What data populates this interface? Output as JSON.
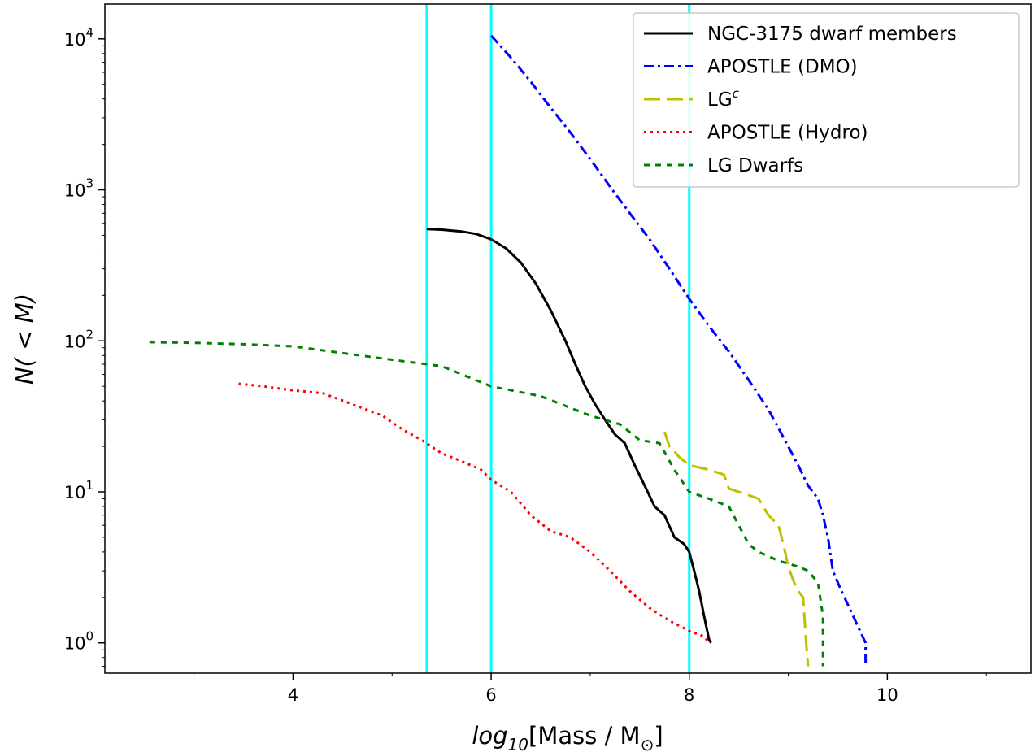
{
  "chart_data": {
    "type": "line",
    "xlabel": {
      "prefix": "log",
      "sub": "10",
      "rest": "[Mass / M",
      "sun": "⊙",
      "close": "]"
    },
    "ylabel": "N( < M)",
    "xlim": [
      2.1,
      11.45
    ],
    "ylim": [
      0.63,
      17000
    ],
    "yscale": "log",
    "grid": false,
    "legend_position": "top-right",
    "x_ticks": [
      4,
      6,
      8,
      10
    ],
    "x_minor_ticks": [
      3,
      5,
      7,
      9,
      11
    ],
    "y_ticks": [
      {
        "value": 1,
        "base": "10",
        "exp": "0"
      },
      {
        "value": 10,
        "base": "10",
        "exp": "1"
      },
      {
        "value": 100,
        "base": "10",
        "exp": "2"
      },
      {
        "value": 1000,
        "base": "10",
        "exp": "3"
      },
      {
        "value": 10000,
        "base": "10",
        "exp": "4"
      }
    ],
    "vlines": {
      "color": "#00ffff",
      "x": [
        5.35,
        6.0,
        8.0
      ]
    },
    "series": [
      {
        "name": "NGC-3175 dwarf members",
        "legend_sup": "",
        "color": "#000000",
        "dash": "",
        "x": [
          5.35,
          5.5,
          5.7,
          5.85,
          6.0,
          6.15,
          6.3,
          6.45,
          6.6,
          6.75,
          6.85,
          6.95,
          7.05,
          7.15,
          7.25,
          7.35,
          7.45,
          7.55,
          7.65,
          7.75,
          7.85,
          7.95,
          8.0,
          8.05,
          8.1,
          8.15,
          8.2,
          8.22
        ],
        "y": [
          550,
          545,
          530,
          510,
          470,
          410,
          330,
          240,
          160,
          100,
          70,
          50,
          38,
          30,
          24,
          21,
          15,
          11,
          8,
          7,
          5,
          4.5,
          4,
          3,
          2.2,
          1.5,
          1.05,
          1
        ]
      },
      {
        "name": "APOSTLE (DMO)",
        "legend_sup": "",
        "color": "#0000ff",
        "dash": "12 5 3 5",
        "x": [
          6.0,
          6.2,
          6.4,
          6.6,
          6.8,
          7.0,
          7.2,
          7.4,
          7.6,
          7.8,
          8.0,
          8.2,
          8.4,
          8.6,
          8.8,
          9.0,
          9.1,
          9.2,
          9.3,
          9.35,
          9.4,
          9.45,
          9.5,
          9.6,
          9.7,
          9.78,
          9.78
        ],
        "y": [
          10500,
          7500,
          5200,
          3500,
          2400,
          1600,
          1050,
          700,
          470,
          300,
          190,
          125,
          85,
          55,
          35,
          20,
          15,
          11,
          9,
          7,
          5,
          3,
          2.5,
          1.8,
          1.3,
          1,
          0.7
        ]
      },
      {
        "name": "LG",
        "legend_sup": "c",
        "color": "#bfbf00",
        "dash": "20 8",
        "x": [
          7.75,
          7.8,
          7.85,
          7.9,
          8.0,
          8.1,
          8.2,
          8.35,
          8.4,
          8.5,
          8.6,
          8.7,
          8.8,
          8.9,
          8.95,
          9.0,
          9.05,
          9.1,
          9.15,
          9.18,
          9.2
        ],
        "y": [
          25,
          20,
          18.5,
          17,
          15,
          14.5,
          14,
          13,
          10.5,
          10,
          9.5,
          9,
          7,
          6,
          4.5,
          3.2,
          2.6,
          2.2,
          2,
          1,
          0.7
        ]
      },
      {
        "name": "APOSTLE (Hydro)",
        "legend_sup": "",
        "color": "#ff0000",
        "dash": "3 5",
        "x": [
          3.45,
          3.7,
          4.0,
          4.3,
          4.6,
          4.9,
          5.1,
          5.3,
          5.5,
          5.7,
          5.9,
          6.0,
          6.2,
          6.4,
          6.6,
          6.8,
          7.0,
          7.2,
          7.4,
          7.6,
          7.8,
          8.0,
          8.15,
          8.2
        ],
        "y": [
          52,
          50,
          47,
          45,
          38,
          32,
          26,
          22,
          18,
          16,
          14,
          12,
          10,
          7,
          5.5,
          5,
          4,
          3,
          2.2,
          1.7,
          1.4,
          1.2,
          1.1,
          1
        ]
      },
      {
        "name": "LG Dwarfs",
        "legend_sup": "",
        "color": "#008000",
        "dash": "7 7",
        "x": [
          2.55,
          3.0,
          3.5,
          4.0,
          4.5,
          5.0,
          5.5,
          6.0,
          6.5,
          7.0,
          7.3,
          7.5,
          7.7,
          7.85,
          8.0,
          8.2,
          8.4,
          8.5,
          8.6,
          8.7,
          8.9,
          9.1,
          9.2,
          9.3,
          9.35,
          9.35
        ],
        "y": [
          98,
          97,
          95,
          92,
          83,
          75,
          68,
          50,
          43,
          32,
          28,
          22,
          21,
          14,
          10,
          9,
          8,
          6,
          4.5,
          4,
          3.5,
          3.2,
          3,
          2.5,
          1.5,
          0.7
        ]
      }
    ]
  }
}
